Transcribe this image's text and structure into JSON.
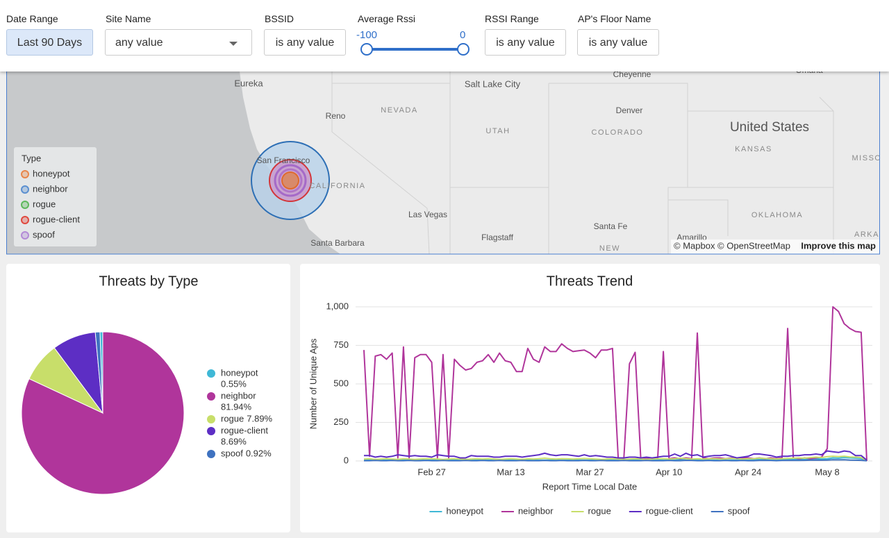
{
  "filters": [
    {
      "label": "Date Range",
      "value": "Last 90 Days"
    },
    {
      "label": "Site Name",
      "value": "any value"
    },
    {
      "label": "BSSID",
      "value": "is any value"
    },
    {
      "label": "Average Rssi",
      "range": [
        -100,
        0
      ]
    },
    {
      "label": "RSSI Range",
      "value": "is any value"
    },
    {
      "label": "AP's Floor Name",
      "value": "is any value"
    }
  ],
  "map": {
    "places": [
      "Eureka",
      "Reno",
      "NEVADA",
      "Salt Lake City",
      "UTAH",
      "Cheyenne",
      "Omaha",
      "Denver",
      "COLORADO",
      "United States",
      "KANSAS",
      "MISSO",
      "San Francisco",
      "CALIFORNIA",
      "Las Vegas",
      "Santa Fe",
      "OKLAHOMA",
      "Flagstaff",
      "Amarillo",
      "ARKA",
      "Santa Barbara",
      "NEW"
    ],
    "legend_title": "Type",
    "legend": [
      {
        "name": "honeypot",
        "color": "#e8864a"
      },
      {
        "name": "neighbor",
        "color": "#5b8fd0"
      },
      {
        "name": "rogue",
        "color": "#5db85c"
      },
      {
        "name": "rogue-client",
        "color": "#e0483e"
      },
      {
        "name": "spoof",
        "color": "#b38ad6"
      }
    ],
    "attribution": "© Mapbox © OpenStreetMap",
    "improve": "Improve this map"
  },
  "chart_data": [
    {
      "type": "pie",
      "title": "Threats by Type",
      "categories": [
        "honeypot",
        "neighbor",
        "rogue",
        "rogue-client",
        "spoof"
      ],
      "values": [
        0.55,
        81.94,
        7.89,
        8.69,
        0.92
      ],
      "value_labels": [
        "0.55%",
        "81.94%",
        "7.89%",
        "8.69%",
        "0.92%"
      ],
      "colors": [
        "#3fb8d6",
        "#b0359b",
        "#c8de6a",
        "#5d2ec4",
        "#3f72c0"
      ]
    },
    {
      "type": "line",
      "title": "Threats Trend",
      "x_label": "Report Time Local Date",
      "y_label": "Number of Unique Aps",
      "categories": [
        null,
        null,
        null,
        null,
        null,
        null,
        null,
        null,
        null,
        null,
        null,
        null,
        "Feb 27",
        null,
        null,
        null,
        null,
        null,
        null,
        null,
        null,
        null,
        null,
        null,
        null,
        null,
        "Mar 13",
        null,
        null,
        null,
        null,
        null,
        null,
        null,
        null,
        null,
        null,
        null,
        null,
        null,
        "Mar 27",
        null,
        null,
        null,
        null,
        null,
        null,
        null,
        null,
        null,
        null,
        null,
        null,
        null,
        "Apr 10",
        null,
        null,
        null,
        null,
        null,
        null,
        null,
        null,
        null,
        null,
        null,
        null,
        null,
        "Apr 24",
        null,
        null,
        null,
        null,
        null,
        null,
        null,
        null,
        null,
        null,
        null,
        null,
        null,
        "May 8",
        null,
        null,
        null,
        null,
        null,
        null,
        null
      ],
      "ylim": [
        0,
        1000
      ],
      "yticks": [
        0,
        250,
        500,
        750,
        {
          "value": 1000,
          "label": "1,000"
        }
      ],
      "grid": true,
      "series": [
        {
          "name": "honeypot",
          "color": "#3fb8d6",
          "values": [
            5,
            6,
            5,
            4,
            5,
            6,
            5,
            5,
            6,
            5,
            5,
            4,
            5,
            8,
            6,
            5,
            5,
            4,
            5,
            5,
            6,
            5,
            5,
            4,
            5,
            6,
            5,
            5,
            4,
            5,
            6,
            5,
            5,
            6,
            5,
            4,
            5,
            5,
            6,
            5,
            5,
            4,
            5,
            5,
            6,
            5,
            4,
            5,
            5,
            6,
            5,
            5,
            8,
            6,
            5,
            5,
            10,
            6,
            5,
            5,
            6,
            5,
            5,
            4,
            5,
            6,
            5,
            5,
            6,
            8,
            10,
            8,
            6,
            5,
            10,
            12,
            10,
            8,
            10,
            12,
            15,
            12,
            14,
            20,
            18,
            22,
            20,
            18,
            15,
            2
          ]
        },
        {
          "name": "neighbor",
          "color": "#b0359b",
          "values": [
            720,
            30,
            680,
            690,
            660,
            700,
            20,
            740,
            20,
            670,
            690,
            690,
            640,
            20,
            690,
            20,
            660,
            620,
            590,
            600,
            640,
            650,
            690,
            640,
            700,
            650,
            640,
            580,
            580,
            730,
            660,
            640,
            740,
            710,
            710,
            760,
            730,
            710,
            715,
            720,
            700,
            670,
            720,
            720,
            730,
            20,
            15,
            630,
            705,
            15,
            20,
            15,
            20,
            710,
            15,
            20,
            15,
            20,
            15,
            830,
            20,
            15,
            20,
            20,
            15,
            20,
            15,
            20,
            20,
            15,
            20,
            15,
            20,
            15,
            20,
            860,
            20,
            15,
            20,
            15,
            20,
            25,
            80,
            1000,
            970,
            890,
            860,
            840,
            835,
            0
          ]
        },
        {
          "name": "rogue",
          "color": "#c8de6a",
          "values": [
            12,
            14,
            10,
            12,
            15,
            12,
            10,
            14,
            12,
            10,
            12,
            15,
            14,
            12,
            10,
            12,
            14,
            12,
            10,
            12,
            14,
            12,
            15,
            12,
            10,
            12,
            14,
            12,
            10,
            14,
            12,
            15,
            18,
            14,
            12,
            15,
            14,
            12,
            14,
            16,
            14,
            12,
            10,
            12,
            14,
            12,
            10,
            12,
            14,
            12,
            10,
            12,
            14,
            15,
            12,
            14,
            18,
            15,
            12,
            14,
            12,
            14,
            15,
            12,
            14,
            16,
            14,
            12,
            14,
            15,
            18,
            16,
            14,
            12,
            15,
            16,
            18,
            20,
            18,
            22,
            25,
            22,
            28,
            30,
            28,
            30,
            26,
            25,
            22,
            3
          ]
        },
        {
          "name": "rogue-client",
          "color": "#5d2ec4",
          "values": [
            35,
            35,
            25,
            30,
            25,
            30,
            40,
            35,
            30,
            35,
            30,
            30,
            25,
            40,
            35,
            30,
            30,
            20,
            20,
            35,
            30,
            30,
            30,
            25,
            25,
            30,
            30,
            30,
            25,
            30,
            35,
            40,
            50,
            40,
            35,
            40,
            40,
            35,
            30,
            40,
            30,
            35,
            30,
            25,
            25,
            20,
            20,
            25,
            25,
            20,
            25,
            20,
            25,
            30,
            30,
            45,
            30,
            50,
            35,
            40,
            25,
            30,
            35,
            35,
            40,
            30,
            20,
            25,
            30,
            45,
            45,
            40,
            35,
            25,
            30,
            30,
            35,
            35,
            40,
            40,
            45,
            40,
            65,
            60,
            55,
            65,
            60,
            35,
            35,
            5
          ]
        },
        {
          "name": "spoof",
          "color": "#3f72c0",
          "values": [
            2,
            2,
            3,
            2,
            2,
            3,
            2,
            2,
            3,
            2,
            2,
            3,
            2,
            2,
            3,
            2,
            2,
            2,
            3,
            2,
            2,
            3,
            2,
            2,
            3,
            2,
            2,
            2,
            3,
            2,
            2,
            2,
            3,
            2,
            2,
            3,
            2,
            2,
            2,
            3,
            2,
            2,
            3,
            2,
            2,
            2,
            3,
            2,
            2,
            2,
            3,
            2,
            2,
            2,
            3,
            2,
            2,
            4,
            3,
            2,
            2,
            3,
            2,
            2,
            3,
            2,
            2,
            3,
            2,
            2,
            3,
            4,
            3,
            2,
            3,
            4,
            3,
            3,
            4,
            5,
            6,
            5,
            6,
            8,
            7,
            8,
            6,
            5,
            4,
            1
          ]
        }
      ]
    }
  ]
}
